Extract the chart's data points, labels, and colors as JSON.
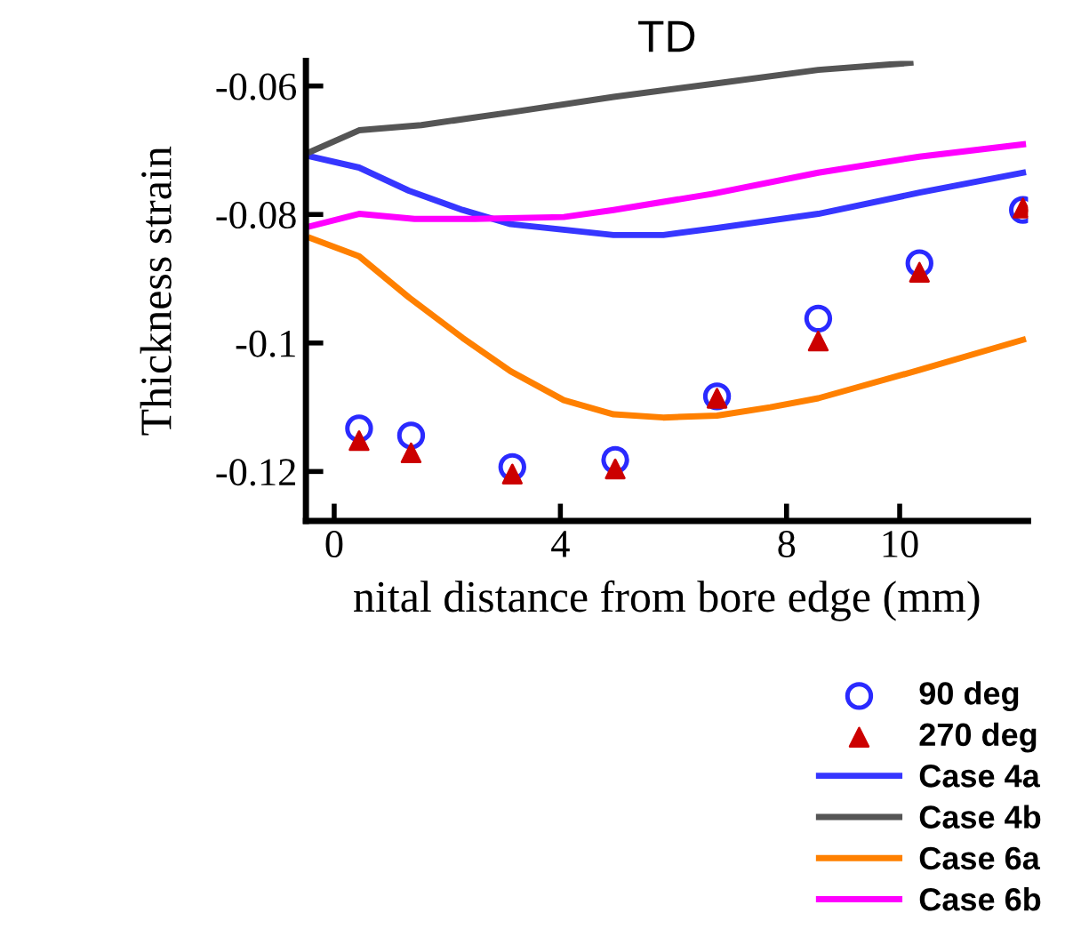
{
  "chart_data": {
    "type": "line",
    "title": "TD",
    "xlabel": "nital distance from bore edge (mm)",
    "ylabel": "Thickness strain",
    "xlim": [
      -0.5,
      12.27
    ],
    "xticks": [
      0,
      4,
      8,
      10
    ],
    "ylim": [
      -0.1277,
      -0.0561
    ],
    "yticks": [
      -0.06,
      -0.08,
      -0.1,
      -0.12
    ],
    "grid": false,
    "legend": "bottom right",
    "line_style": "solid",
    "series": [
      {
        "name": "90 deg",
        "type": "scatter",
        "marker": "circle",
        "color": "#2a2aff",
        "x": [
          0.44,
          1.36,
          3.15,
          4.97,
          6.77,
          8.56,
          10.35,
          12.18
        ],
        "values": [
          -0.1133,
          -0.1144,
          -0.1193,
          -0.1182,
          -0.1083,
          -0.0962,
          -0.0876,
          -0.0793
        ]
      },
      {
        "name": "270 deg",
        "type": "scatter",
        "marker": "triangle",
        "color": "#cc0000",
        "x": [
          0.44,
          1.36,
          3.15,
          4.97,
          6.77,
          8.56,
          10.35,
          12.18
        ],
        "values": [
          -0.1152,
          -0.1171,
          -0.1204,
          -0.1196,
          -0.1086,
          -0.0997,
          -0.089,
          -0.079
        ]
      },
      {
        "name": "Case 4a",
        "color": "#3636ff",
        "x": [
          -0.41,
          0.44,
          1.32,
          2.27,
          3.12,
          4.94,
          5.82,
          6.77,
          8.56,
          10.35,
          12.18
        ],
        "values": [
          -0.071,
          -0.0727,
          -0.0763,
          -0.0793,
          -0.0815,
          -0.0832,
          -0.0832,
          -0.0821,
          -0.0799,
          -0.0766,
          -0.0735
        ]
      },
      {
        "name": "Case 4b",
        "color": "#555555",
        "x": [
          -0.41,
          0.44,
          1.54,
          3.12,
          4.94,
          6.68,
          8.56,
          10.19
        ],
        "values": [
          -0.0702,
          -0.0669,
          -0.0661,
          -0.0641,
          -0.0617,
          -0.0597,
          -0.0575,
          -0.0564
        ]
      },
      {
        "name": "Case 6a",
        "color": "#ff8000",
        "x": [
          -0.41,
          0.44,
          1.32,
          2.27,
          3.12,
          4.06,
          4.94,
          5.82,
          6.77,
          7.71,
          8.56,
          10.35,
          12.18
        ],
        "values": [
          -0.0837,
          -0.0865,
          -0.0929,
          -0.0992,
          -0.1044,
          -0.1089,
          -0.1111,
          -0.1116,
          -0.1113,
          -0.11,
          -0.1086,
          -0.1042,
          -0.0995
        ]
      },
      {
        "name": "Case 6b",
        "color": "#ff00ff",
        "x": [
          -0.41,
          0.44,
          1.42,
          2.49,
          4.06,
          4.94,
          6.68,
          8.56,
          10.35,
          12.18
        ],
        "values": [
          -0.0818,
          -0.0799,
          -0.0807,
          -0.0807,
          -0.0804,
          -0.0793,
          -0.0768,
          -0.0735,
          -0.071,
          -0.0691
        ]
      }
    ]
  }
}
